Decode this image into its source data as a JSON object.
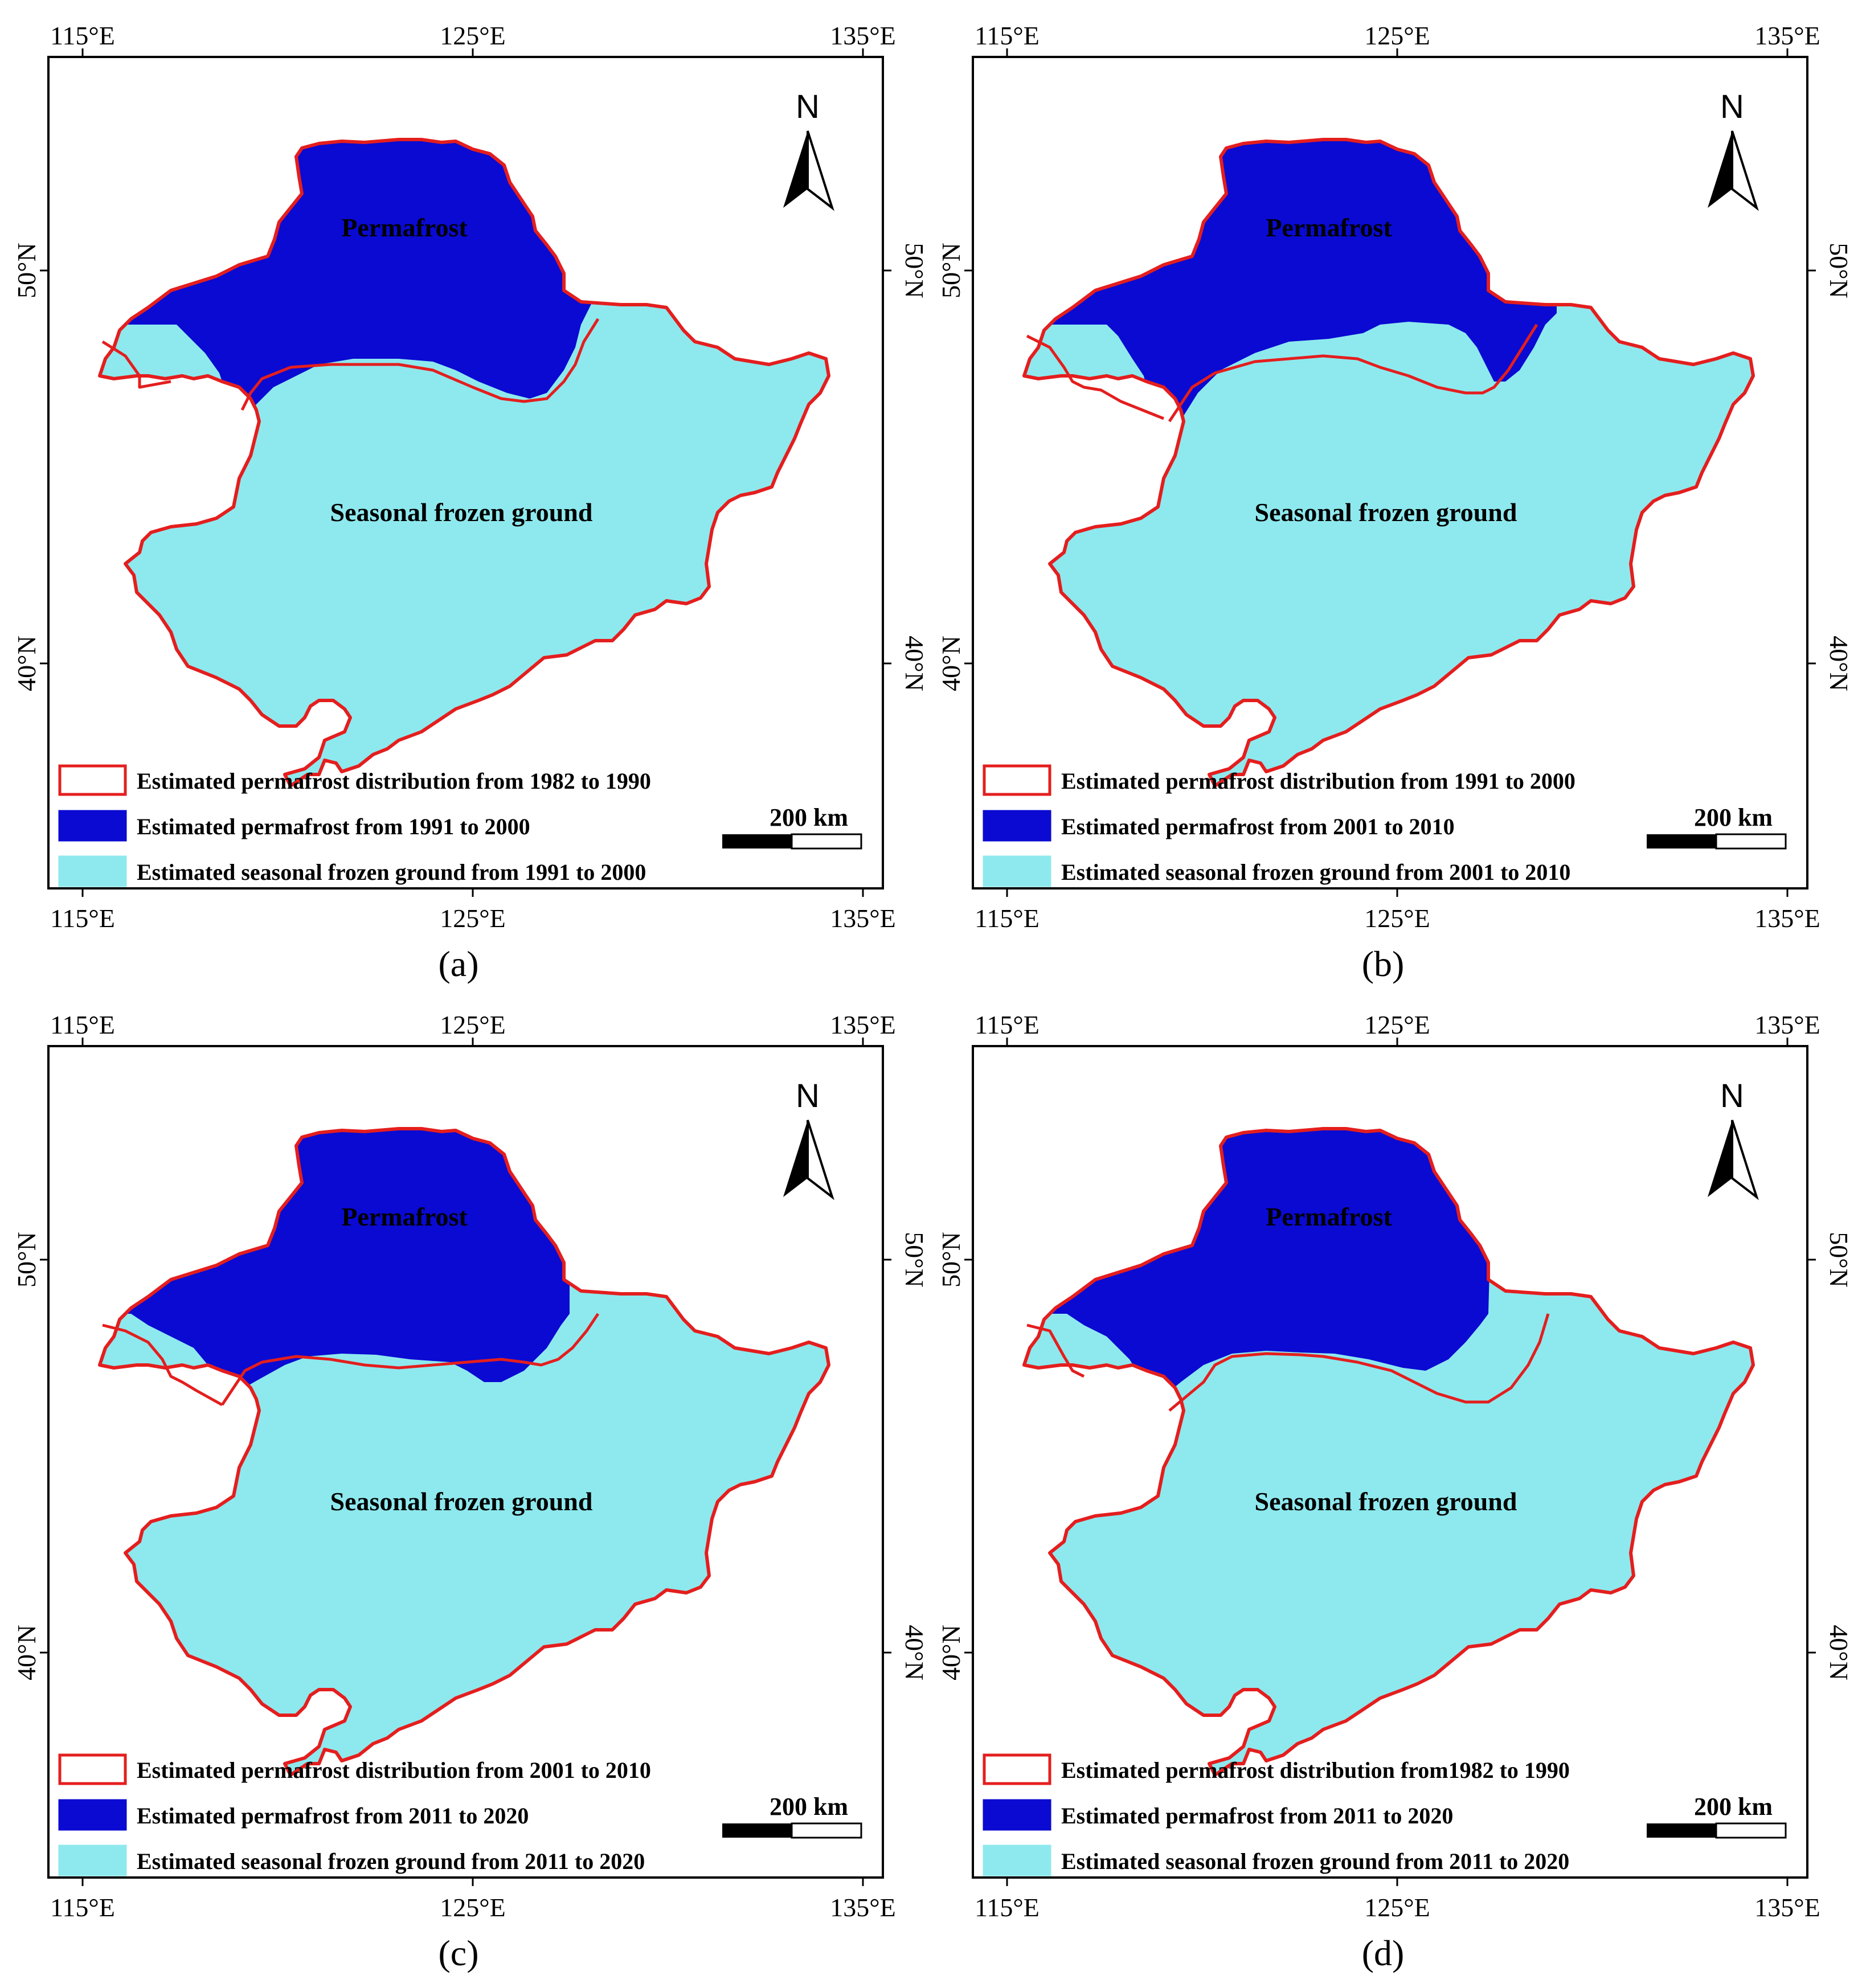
{
  "colors": {
    "permafrost": "#0a0ad2",
    "seasonal": "#8ee9ee",
    "boundary": "#e41e1e",
    "frame": "#000000"
  },
  "panels": [
    {
      "caption": "(a)",
      "labels": {
        "permafrost": "Permafrost",
        "seasonal": "Seasonal frozen ground"
      },
      "north": "N",
      "scale": "200 km",
      "legend": [
        "Estimated permafrost distribution from 1982 to 1990",
        "Estimated permafrost from 1991 to 2000",
        "Estimated seasonal frozen ground from 1991 to 2000"
      ],
      "lon_ticks": [
        "115°E",
        "125°E",
        "135°E"
      ],
      "lat_ticks": [
        "50°N",
        "40°N"
      ]
    },
    {
      "caption": "(b)",
      "labels": {
        "permafrost": "Permafrost",
        "seasonal": "Seasonal frozen ground"
      },
      "north": "N",
      "scale": "200 km",
      "legend": [
        "Estimated permafrost distribution from 1991 to 2000",
        "Estimated permafrost from 2001 to 2010",
        "Estimated seasonal frozen ground from 2001 to 2010"
      ],
      "lon_ticks": [
        "115°E",
        "125°E",
        "135°E"
      ],
      "lat_ticks": [
        "50°N",
        "40°N"
      ]
    },
    {
      "caption": "(c)",
      "labels": {
        "permafrost": "Permafrost",
        "seasonal": "Seasonal frozen ground"
      },
      "north": "N",
      "scale": "200 km",
      "legend": [
        "Estimated permafrost distribution from 2001 to 2010",
        "Estimated permafrost from 2011 to 2020",
        "Estimated seasonal frozen ground from 2011 to 2020"
      ],
      "lon_ticks": [
        "115°E",
        "125°E",
        "135°E"
      ],
      "lat_ticks": [
        "50°N",
        "40°N"
      ]
    },
    {
      "caption": "(d)",
      "labels": {
        "permafrost": "Permafrost",
        "seasonal": "Seasonal frozen ground"
      },
      "north": "N",
      "scale": "200 km",
      "legend": [
        "Estimated permafrost distribution from1982 to 1990",
        "Estimated permafrost from 2011 to 2020",
        "Estimated seasonal frozen ground from 2011 to 2020"
      ],
      "lon_ticks": [
        "115°E",
        "125°E",
        "135°E"
      ],
      "lat_ticks": [
        "50°N",
        "40°N"
      ]
    }
  ]
}
